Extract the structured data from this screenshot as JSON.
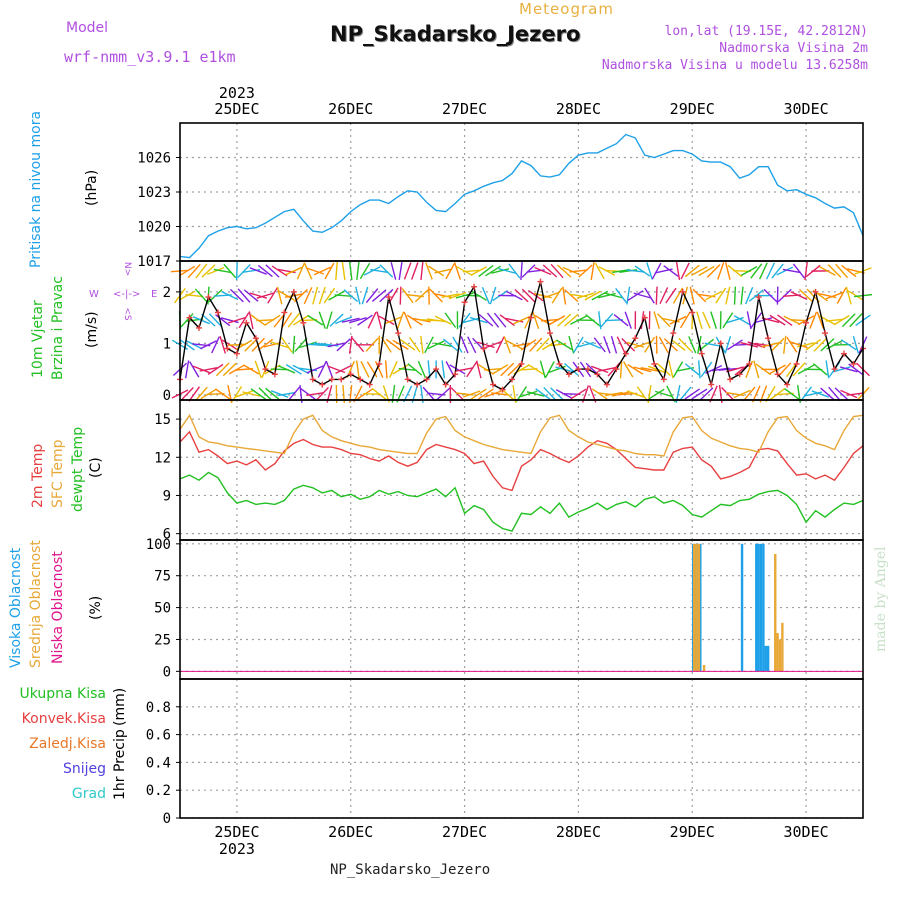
{
  "header": {
    "model_label": "Model",
    "model_name": "wrf-nmm_v3.9.1 e1km",
    "product": "Meteogram",
    "station": "NP_Skadarsko_Jezero",
    "lonlat": "lon,lat (19.15E, 42.2812N)",
    "elevation": "Nadmorska Visina 2m",
    "model_elevation": "Nadmorska Visina u modelu 13.6258m",
    "watermark": "made by Angel",
    "footer_station": "NP_Skadarsko_Jezero"
  },
  "colors": {
    "pressure": "#1ea0e8",
    "temp2m": "#e84040",
    "sfc_temp": "#e8a838",
    "dewpt": "#22c022",
    "wind_line": "#000000",
    "high_cloud": "#1ea0e8",
    "mid_cloud": "#e8a838",
    "low_cloud": "#e0148c",
    "precip_total": "#22c022",
    "precip_conv": "#e84040",
    "precip_frozen": "#e87828",
    "snow": "#5040e0",
    "grad": "#30c8c8",
    "model_label": "#b050e0",
    "product_label": "#e8b040",
    "grid": "#a0a0a0"
  },
  "chart_data": {
    "type": "line",
    "x_axis": {
      "year": "2023",
      "day_labels": [
        "25DEC",
        "26DEC",
        "27DEC",
        "28DEC",
        "29DEC",
        "30DEC"
      ],
      "range_hours": [
        -12,
        132
      ]
    },
    "panels": [
      {
        "id": "pressure",
        "ylabel_lines": [
          "Pritisak na nivou mora"
        ],
        "unit": "(hPa)",
        "ylim": [
          1017,
          1029
        ],
        "yticks": [
          1017,
          1020,
          1023,
          1026
        ],
        "series": [
          {
            "name": "Pritisak na nivou mora",
            "color_key": "pressure",
            "x": [
              -12,
              -10,
              -8,
              -6,
              -4,
              -2,
              0,
              2,
              4,
              6,
              8,
              10,
              12,
              14,
              16,
              18,
              20,
              22,
              24,
              26,
              28,
              30,
              32,
              34,
              36,
              38,
              40,
              42,
              44,
              46,
              48,
              50,
              52,
              54,
              56,
              58,
              60,
              62,
              64,
              66,
              68,
              70,
              72,
              74,
              76,
              78,
              80,
              82,
              84,
              86,
              88,
              90,
              92,
              94,
              96,
              98,
              100,
              102,
              104,
              106,
              108,
              110,
              112,
              114,
              116,
              118,
              120,
              122,
              124,
              126,
              128,
              130,
              132
            ],
            "y": [
              1017.4,
              1017.3,
              1018.1,
              1019.2,
              1019.6,
              1019.9,
              1020.0,
              1019.8,
              1019.9,
              1020.3,
              1020.8,
              1021.3,
              1021.5,
              1020.5,
              1019.6,
              1019.5,
              1019.9,
              1020.5,
              1021.3,
              1021.9,
              1022.3,
              1022.3,
              1022.0,
              1022.6,
              1023.1,
              1023.0,
              1022.1,
              1021.4,
              1021.3,
              1022.0,
              1022.8,
              1023.1,
              1023.5,
              1023.8,
              1024.0,
              1024.6,
              1025.7,
              1025.3,
              1024.4,
              1024.3,
              1024.5,
              1025.5,
              1026.2,
              1026.4,
              1026.4,
              1026.8,
              1027.2,
              1028.0,
              1027.7,
              1026.2,
              1026.0,
              1026.3,
              1026.6,
              1026.6,
              1026.3,
              1025.7,
              1025.6,
              1025.6,
              1025.2,
              1024.2,
              1024.5,
              1025.2,
              1025.2,
              1023.6,
              1023.1,
              1023.2,
              1022.8,
              1022.5,
              1022.0,
              1021.6,
              1021.7,
              1021.2,
              1019.2
            ]
          }
        ]
      },
      {
        "id": "wind",
        "ylabel_lines": [
          "10m Vjetar",
          "Brzina i Pravac"
        ],
        "unit": "(m/s)",
        "compass": [
          "N",
          "W",
          "E",
          "S"
        ],
        "ylim": [
          -0.1,
          2.6
        ],
        "yticks": [
          0,
          1,
          2
        ],
        "series": [
          {
            "name": "10m Vjetar",
            "color_key": "wind_line",
            "x": [
              -12,
              -10,
              -8,
              -6,
              -4,
              -2,
              0,
              2,
              4,
              6,
              8,
              10,
              12,
              14,
              16,
              18,
              20,
              22,
              24,
              26,
              28,
              30,
              32,
              34,
              36,
              38,
              40,
              42,
              44,
              46,
              48,
              50,
              52,
              54,
              56,
              58,
              60,
              62,
              64,
              66,
              68,
              70,
              72,
              74,
              76,
              78,
              80,
              82,
              84,
              86,
              88,
              90,
              92,
              94,
              96,
              98,
              100,
              102,
              104,
              106,
              108,
              110,
              112,
              114,
              116,
              118,
              120,
              122,
              124,
              126,
              128,
              130,
              132
            ],
            "y": [
              0.3,
              1.5,
              1.3,
              1.9,
              1.6,
              0.9,
              0.8,
              1.4,
              1.1,
              0.5,
              0.4,
              1.6,
              2.0,
              1.4,
              0.3,
              0.2,
              0.3,
              0.3,
              0.4,
              0.3,
              0.2,
              0.6,
              1.9,
              1.2,
              0.3,
              0.2,
              0.3,
              0.5,
              0.2,
              0.4,
              1.8,
              2.1,
              0.9,
              0.2,
              0.1,
              0.3,
              0.6,
              1.5,
              2.2,
              1.2,
              0.6,
              0.4,
              0.5,
              0.5,
              0.4,
              0.2,
              0.5,
              0.8,
              1.1,
              1.5,
              0.6,
              0.3,
              1.2,
              2.0,
              1.6,
              0.8,
              0.2,
              1.0,
              0.3,
              0.4,
              0.6,
              1.9,
              1.1,
              0.4,
              0.2,
              0.6,
              1.4,
              2.0,
              1.2,
              0.5,
              0.8,
              0.6,
              0.9
            ]
          }
        ]
      },
      {
        "id": "temperature",
        "ylabel_lines": [
          "2m Temp",
          "SFC Temp",
          "dewpt Temp"
        ],
        "unit": "(C)",
        "ylim": [
          5.5,
          16.5
        ],
        "yticks": [
          6,
          9,
          12,
          15
        ],
        "series": [
          {
            "name": "2m Temp",
            "color_key": "temp2m",
            "x": [
              -12,
              -10,
              -8,
              -6,
              -4,
              -2,
              0,
              2,
              4,
              6,
              8,
              10,
              12,
              14,
              16,
              18,
              20,
              22,
              24,
              26,
              28,
              30,
              32,
              34,
              36,
              38,
              40,
              42,
              44,
              46,
              48,
              50,
              52,
              54,
              56,
              58,
              60,
              62,
              64,
              66,
              68,
              70,
              72,
              74,
              76,
              78,
              80,
              82,
              84,
              86,
              88,
              90,
              92,
              94,
              96,
              98,
              100,
              102,
              104,
              106,
              108,
              110,
              112,
              114,
              116,
              118,
              120,
              122,
              124,
              126,
              128,
              130,
              132
            ],
            "y": [
              13.2,
              14.0,
              12.4,
              12.6,
              12.1,
              11.5,
              11.7,
              11.4,
              11.8,
              11.0,
              11.5,
              12.5,
              13.1,
              13.4,
              13.0,
              12.8,
              12.8,
              12.6,
              12.3,
              12.2,
              11.9,
              11.7,
              12.1,
              11.6,
              11.3,
              11.6,
              12.6,
              13.0,
              12.8,
              12.6,
              12.3,
              11.5,
              11.7,
              10.5,
              9.6,
              9.4,
              11.3,
              11.8,
              12.6,
              12.3,
              11.9,
              11.6,
              12.1,
              12.8,
              13.3,
              13.1,
              12.6,
              11.9,
              11.2,
              11.1,
              11.0,
              11.0,
              12.4,
              12.7,
              12.8,
              11.8,
              11.3,
              10.3,
              10.5,
              10.8,
              11.2,
              12.6,
              12.7,
              12.5,
              11.5,
              10.6,
              10.7,
              10.3,
              10.6,
              10.2,
              11.2,
              12.3,
              12.9
            ]
          },
          {
            "name": "SFC Temp",
            "color_key": "sfc_temp",
            "x": [
              -12,
              -10,
              -8,
              -6,
              -4,
              -2,
              0,
              2,
              4,
              6,
              8,
              10,
              12,
              14,
              16,
              18,
              20,
              22,
              24,
              26,
              28,
              30,
              32,
              34,
              36,
              38,
              40,
              42,
              44,
              46,
              48,
              50,
              52,
              54,
              56,
              58,
              60,
              62,
              64,
              66,
              68,
              70,
              72,
              74,
              76,
              78,
              80,
              82,
              84,
              86,
              88,
              90,
              92,
              94,
              96,
              98,
              100,
              102,
              104,
              106,
              108,
              110,
              112,
              114,
              116,
              118,
              120,
              122,
              124,
              126,
              128,
              130,
              132
            ],
            "y": [
              14.2,
              15.3,
              13.6,
              13.2,
              13.1,
              12.9,
              12.8,
              12.7,
              12.6,
              12.5,
              12.4,
              12.3,
              13.9,
              15.0,
              15.3,
              14.1,
              13.6,
              13.3,
              13.1,
              12.9,
              12.8,
              12.6,
              12.5,
              12.4,
              12.3,
              12.3,
              13.9,
              15.0,
              15.2,
              14.1,
              13.6,
              13.3,
              13.0,
              12.8,
              12.6,
              12.5,
              12.4,
              12.3,
              14.0,
              15.1,
              15.3,
              14.1,
              13.6,
              13.2,
              13.0,
              12.8,
              12.6,
              12.5,
              12.3,
              12.2,
              12.2,
              12.1,
              14.0,
              15.1,
              15.2,
              14.1,
              13.5,
              13.2,
              12.9,
              12.7,
              12.6,
              12.4,
              14.0,
              15.1,
              15.2,
              14.1,
              13.5,
              13.1,
              12.9,
              12.6,
              14.1,
              15.2,
              15.3
            ]
          },
          {
            "name": "dewpt Temp",
            "color_key": "dewpt",
            "x": [
              -12,
              -10,
              -8,
              -6,
              -4,
              -2,
              0,
              2,
              4,
              6,
              8,
              10,
              12,
              14,
              16,
              18,
              20,
              22,
              24,
              26,
              28,
              30,
              32,
              34,
              36,
              38,
              40,
              42,
              44,
              46,
              48,
              50,
              52,
              54,
              56,
              58,
              60,
              62,
              64,
              66,
              68,
              70,
              72,
              74,
              76,
              78,
              80,
              82,
              84,
              86,
              88,
              90,
              92,
              94,
              96,
              98,
              100,
              102,
              104,
              106,
              108,
              110,
              112,
              114,
              116,
              118,
              120,
              122,
              124,
              126,
              128,
              130,
              132
            ],
            "y": [
              10.3,
              10.6,
              10.2,
              10.8,
              10.4,
              9.2,
              8.4,
              8.6,
              8.3,
              8.4,
              8.3,
              8.6,
              9.5,
              9.8,
              9.6,
              9.2,
              9.4,
              8.9,
              9.1,
              8.7,
              8.9,
              9.4,
              9.1,
              9.3,
              9.0,
              8.9,
              9.2,
              9.5,
              8.9,
              9.6,
              7.6,
              8.2,
              7.9,
              6.9,
              6.4,
              6.2,
              7.6,
              7.5,
              8.1,
              7.6,
              8.4,
              7.3,
              7.7,
              8.0,
              8.4,
              7.9,
              8.3,
              8.5,
              8.1,
              8.7,
              8.9,
              8.4,
              8.6,
              8.2,
              7.5,
              7.3,
              7.8,
              8.3,
              8.2,
              8.6,
              8.7,
              9.1,
              9.3,
              9.4,
              9.0,
              8.3,
              6.9,
              7.8,
              7.3,
              7.9,
              8.4,
              8.3,
              8.6
            ]
          }
        ]
      },
      {
        "id": "cloud",
        "ylabel_lines": [
          "Visoka Oblacnost",
          "Srednja Oblacnost",
          "Niska Oblacnost"
        ],
        "unit": "(%)",
        "ylim": [
          -6,
          103
        ],
        "yticks": [
          0,
          25,
          50,
          75,
          100
        ],
        "series": [
          {
            "name": "Visoka Oblacnost",
            "color_key": "high_cloud",
            "x": [
              96.2,
              96.7,
              97.2,
              97.7,
              106.5,
              109.5,
              110.0,
              110.5,
              111.0,
              111.5,
              112.0
            ],
            "y": [
              100,
              100,
              100,
              100,
              100,
              100,
              100,
              100,
              100,
              20,
              20
            ]
          },
          {
            "name": "Srednja Oblacnost",
            "color_key": "mid_cloud",
            "x": [
              96.4,
              96.9,
              97.4,
              98.5,
              113.5,
              114.0,
              114.5,
              115.0
            ],
            "y": [
              100,
              100,
              100,
              5,
              92,
              30,
              25,
              38
            ]
          },
          {
            "name": "Niska Oblacnost",
            "color_key": "low_cloud",
            "x": [],
            "y": []
          }
        ]
      },
      {
        "id": "precip",
        "ylabel_lines": [
          "1hr Precip"
        ],
        "unit": "(mm)",
        "legend": [
          "Ukupna Kisa",
          "Konvek.Kisa",
          "Zaledj.Kisa",
          "Snijeg",
          "Grad"
        ],
        "ylim": [
          0,
          1.0
        ],
        "yticks": [
          0,
          0.2,
          0.4,
          0.6,
          0.8
        ],
        "ytick_labels": [
          "0",
          "0.2",
          "0.4",
          "0.6",
          "0.8"
        ],
        "series": []
      }
    ]
  }
}
